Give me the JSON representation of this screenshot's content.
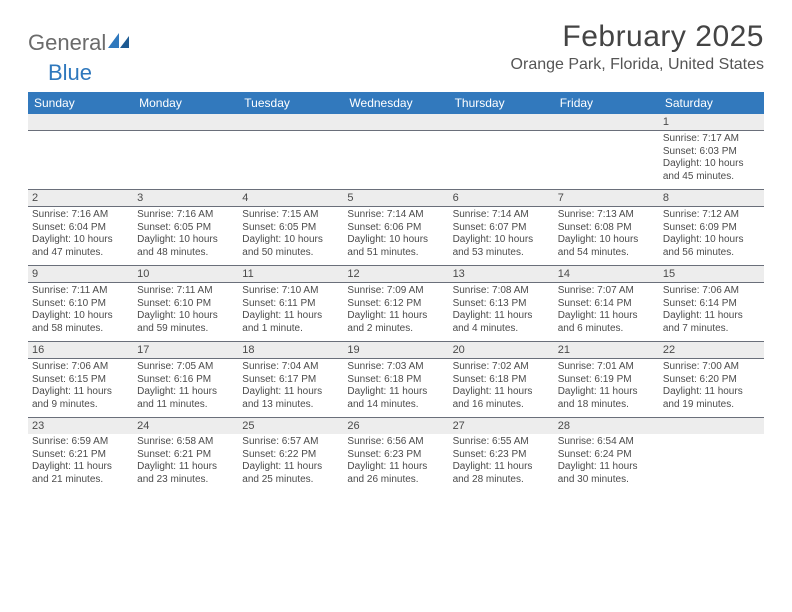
{
  "logo": {
    "text1": "General",
    "text2": "Blue"
  },
  "title": "February 2025",
  "location": "Orange Park, Florida, United States",
  "colors": {
    "header_bg": "#3279bd",
    "header_text": "#ffffff",
    "daynum_bg": "#ededed",
    "text": "#4b4b4b",
    "rule": "#6a6f7a",
    "logo_gray": "#6b6b6b",
    "logo_blue": "#2f78bd"
  },
  "day_headers": [
    "Sunday",
    "Monday",
    "Tuesday",
    "Wednesday",
    "Thursday",
    "Friday",
    "Saturday"
  ],
  "weeks": [
    [
      {
        "n": "",
        "sr": "",
        "ss": "",
        "dl1": "",
        "dl2": ""
      },
      {
        "n": "",
        "sr": "",
        "ss": "",
        "dl1": "",
        "dl2": ""
      },
      {
        "n": "",
        "sr": "",
        "ss": "",
        "dl1": "",
        "dl2": ""
      },
      {
        "n": "",
        "sr": "",
        "ss": "",
        "dl1": "",
        "dl2": ""
      },
      {
        "n": "",
        "sr": "",
        "ss": "",
        "dl1": "",
        "dl2": ""
      },
      {
        "n": "",
        "sr": "",
        "ss": "",
        "dl1": "",
        "dl2": ""
      },
      {
        "n": "1",
        "sr": "Sunrise: 7:17 AM",
        "ss": "Sunset: 6:03 PM",
        "dl1": "Daylight: 10 hours",
        "dl2": "and 45 minutes."
      }
    ],
    [
      {
        "n": "2",
        "sr": "Sunrise: 7:16 AM",
        "ss": "Sunset: 6:04 PM",
        "dl1": "Daylight: 10 hours",
        "dl2": "and 47 minutes."
      },
      {
        "n": "3",
        "sr": "Sunrise: 7:16 AM",
        "ss": "Sunset: 6:05 PM",
        "dl1": "Daylight: 10 hours",
        "dl2": "and 48 minutes."
      },
      {
        "n": "4",
        "sr": "Sunrise: 7:15 AM",
        "ss": "Sunset: 6:05 PM",
        "dl1": "Daylight: 10 hours",
        "dl2": "and 50 minutes."
      },
      {
        "n": "5",
        "sr": "Sunrise: 7:14 AM",
        "ss": "Sunset: 6:06 PM",
        "dl1": "Daylight: 10 hours",
        "dl2": "and 51 minutes."
      },
      {
        "n": "6",
        "sr": "Sunrise: 7:14 AM",
        "ss": "Sunset: 6:07 PM",
        "dl1": "Daylight: 10 hours",
        "dl2": "and 53 minutes."
      },
      {
        "n": "7",
        "sr": "Sunrise: 7:13 AM",
        "ss": "Sunset: 6:08 PM",
        "dl1": "Daylight: 10 hours",
        "dl2": "and 54 minutes."
      },
      {
        "n": "8",
        "sr": "Sunrise: 7:12 AM",
        "ss": "Sunset: 6:09 PM",
        "dl1": "Daylight: 10 hours",
        "dl2": "and 56 minutes."
      }
    ],
    [
      {
        "n": "9",
        "sr": "Sunrise: 7:11 AM",
        "ss": "Sunset: 6:10 PM",
        "dl1": "Daylight: 10 hours",
        "dl2": "and 58 minutes."
      },
      {
        "n": "10",
        "sr": "Sunrise: 7:11 AM",
        "ss": "Sunset: 6:10 PM",
        "dl1": "Daylight: 10 hours",
        "dl2": "and 59 minutes."
      },
      {
        "n": "11",
        "sr": "Sunrise: 7:10 AM",
        "ss": "Sunset: 6:11 PM",
        "dl1": "Daylight: 11 hours",
        "dl2": "and 1 minute."
      },
      {
        "n": "12",
        "sr": "Sunrise: 7:09 AM",
        "ss": "Sunset: 6:12 PM",
        "dl1": "Daylight: 11 hours",
        "dl2": "and 2 minutes."
      },
      {
        "n": "13",
        "sr": "Sunrise: 7:08 AM",
        "ss": "Sunset: 6:13 PM",
        "dl1": "Daylight: 11 hours",
        "dl2": "and 4 minutes."
      },
      {
        "n": "14",
        "sr": "Sunrise: 7:07 AM",
        "ss": "Sunset: 6:14 PM",
        "dl1": "Daylight: 11 hours",
        "dl2": "and 6 minutes."
      },
      {
        "n": "15",
        "sr": "Sunrise: 7:06 AM",
        "ss": "Sunset: 6:14 PM",
        "dl1": "Daylight: 11 hours",
        "dl2": "and 7 minutes."
      }
    ],
    [
      {
        "n": "16",
        "sr": "Sunrise: 7:06 AM",
        "ss": "Sunset: 6:15 PM",
        "dl1": "Daylight: 11 hours",
        "dl2": "and 9 minutes."
      },
      {
        "n": "17",
        "sr": "Sunrise: 7:05 AM",
        "ss": "Sunset: 6:16 PM",
        "dl1": "Daylight: 11 hours",
        "dl2": "and 11 minutes."
      },
      {
        "n": "18",
        "sr": "Sunrise: 7:04 AM",
        "ss": "Sunset: 6:17 PM",
        "dl1": "Daylight: 11 hours",
        "dl2": "and 13 minutes."
      },
      {
        "n": "19",
        "sr": "Sunrise: 7:03 AM",
        "ss": "Sunset: 6:18 PM",
        "dl1": "Daylight: 11 hours",
        "dl2": "and 14 minutes."
      },
      {
        "n": "20",
        "sr": "Sunrise: 7:02 AM",
        "ss": "Sunset: 6:18 PM",
        "dl1": "Daylight: 11 hours",
        "dl2": "and 16 minutes."
      },
      {
        "n": "21",
        "sr": "Sunrise: 7:01 AM",
        "ss": "Sunset: 6:19 PM",
        "dl1": "Daylight: 11 hours",
        "dl2": "and 18 minutes."
      },
      {
        "n": "22",
        "sr": "Sunrise: 7:00 AM",
        "ss": "Sunset: 6:20 PM",
        "dl1": "Daylight: 11 hours",
        "dl2": "and 19 minutes."
      }
    ],
    [
      {
        "n": "23",
        "sr": "Sunrise: 6:59 AM",
        "ss": "Sunset: 6:21 PM",
        "dl1": "Daylight: 11 hours",
        "dl2": "and 21 minutes."
      },
      {
        "n": "24",
        "sr": "Sunrise: 6:58 AM",
        "ss": "Sunset: 6:21 PM",
        "dl1": "Daylight: 11 hours",
        "dl2": "and 23 minutes."
      },
      {
        "n": "25",
        "sr": "Sunrise: 6:57 AM",
        "ss": "Sunset: 6:22 PM",
        "dl1": "Daylight: 11 hours",
        "dl2": "and 25 minutes."
      },
      {
        "n": "26",
        "sr": "Sunrise: 6:56 AM",
        "ss": "Sunset: 6:23 PM",
        "dl1": "Daylight: 11 hours",
        "dl2": "and 26 minutes."
      },
      {
        "n": "27",
        "sr": "Sunrise: 6:55 AM",
        "ss": "Sunset: 6:23 PM",
        "dl1": "Daylight: 11 hours",
        "dl2": "and 28 minutes."
      },
      {
        "n": "28",
        "sr": "Sunrise: 6:54 AM",
        "ss": "Sunset: 6:24 PM",
        "dl1": "Daylight: 11 hours",
        "dl2": "and 30 minutes."
      },
      {
        "n": "",
        "sr": "",
        "ss": "",
        "dl1": "",
        "dl2": ""
      }
    ]
  ]
}
